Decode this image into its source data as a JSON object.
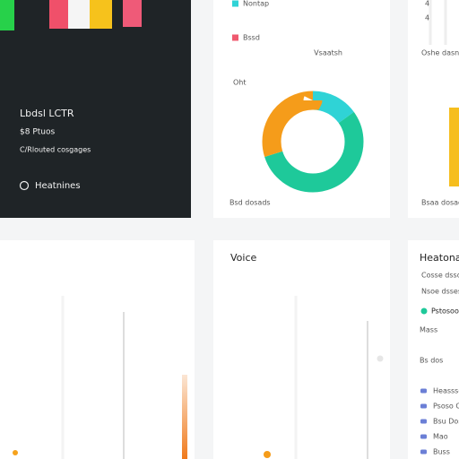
{
  "dark_card": {
    "title": "Lbdsl LCTR",
    "value": "$8 Ptuos",
    "subtitle": "C/Rlouted cosgages",
    "link": "Heatnines"
  },
  "donut_card": {
    "legend": [
      {
        "name": "Nontap",
        "color": "#2fd3d6"
      },
      {
        "name": "Bssd",
        "color": "#ef5a6f"
      }
    ],
    "header_right": "Vsaatsh",
    "label": "Oht",
    "footer": "Bsd dosads",
    "donut": {
      "type": "pie",
      "values": [
        15,
        55,
        30
      ],
      "colors": [
        "#2fd3d6",
        "#1ec99a",
        "#f59c1a"
      ]
    }
  },
  "right_card": {
    "ticks": [
      "4",
      "4"
    ],
    "header": "Oshe dasnsh",
    "footer": "Bsaa dosads"
  },
  "voice_card": {
    "title": "Voice"
  },
  "heat_card": {
    "title": "Heatona",
    "lines": [
      "Cosse dssd",
      "Nsoe dsses"
    ],
    "status": "Pstosoo",
    "label1": "Mass",
    "label2": "Bs dos",
    "items": [
      "Heasssd",
      "Psoso C",
      "Bsu Doss",
      "Mao",
      "Buss"
    ]
  }
}
